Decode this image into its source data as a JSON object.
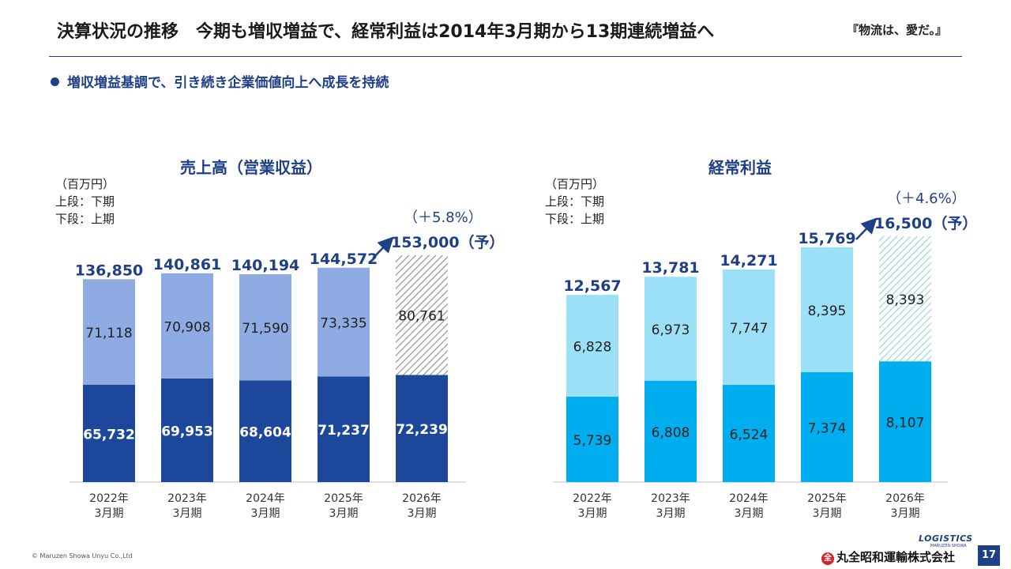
{
  "header": {
    "title": "決算状況の推移　今期も増収増益で、経常利益は2014年3月期から13期連続増益へ",
    "slogan": "『物流は、愛だ。』"
  },
  "bullet": "増収増益基調で、引き続き企業価値向上へ成長を持続",
  "unit_lines": [
    "（百万円）",
    "上段：下期",
    "下段：上期"
  ],
  "colors": {
    "brand": "#1f3f86",
    "sales_lower": "#1c479b",
    "sales_upper": "#8fabe3",
    "profit_lower": "#00aeef",
    "profit_upper": "#9be0f7",
    "label_dark": "#1f3f86"
  },
  "chart_data": [
    {
      "type": "bar",
      "stacked": true,
      "title": "売上高（営業収益）",
      "unit": "百万円",
      "categories": [
        "2022年\n3月期",
        "2023年\n3月期",
        "2024年\n3月期",
        "2025年\n3月期",
        "2026年\n3月期"
      ],
      "series": [
        {
          "name": "下段：上期",
          "values": [
            65732,
            69953,
            68604,
            71237,
            72239
          ]
        },
        {
          "name": "上段：下期",
          "values": [
            71118,
            70908,
            71590,
            73335,
            80761
          ]
        }
      ],
      "total_labels": [
        "136,850",
        "140,861",
        "140,194",
        "144,572",
        "153,000（予）"
      ],
      "lower_labels": [
        "65,732",
        "69,953",
        "68,604",
        "71,237",
        "72,239"
      ],
      "upper_labels": [
        "71,118",
        "70,908",
        "71,590",
        "73,335",
        "80,761"
      ],
      "forecast_index": 4,
      "growth_label": "（＋5.8%）",
      "ylim": [
        0,
        153000
      ]
    },
    {
      "type": "bar",
      "stacked": true,
      "title": "経常利益",
      "unit": "百万円",
      "categories": [
        "2022年\n3月期",
        "2023年\n3月期",
        "2024年\n3月期",
        "2025年\n3月期",
        "2026年\n3月期"
      ],
      "series": [
        {
          "name": "下段：上期",
          "values": [
            5739,
            6808,
            6524,
            7374,
            8107
          ]
        },
        {
          "name": "上段：下期",
          "values": [
            6828,
            6973,
            7747,
            8395,
            8393
          ]
        }
      ],
      "total_labels": [
        "12,567",
        "13,781",
        "14,271",
        "15,769",
        "16,500（予）"
      ],
      "lower_labels": [
        "5,739",
        "6,808",
        "6,524",
        "7,374",
        "8,107"
      ],
      "upper_labels": [
        "6,828",
        "6,973",
        "7,747",
        "8,395",
        "8,393"
      ],
      "forecast_index": 4,
      "growth_label": "（＋4.6%）",
      "ylim": [
        0,
        16500
      ]
    }
  ],
  "footer": {
    "copyright": "© Maruzen Showa Unyu Co.,Ltd",
    "logo_text": "LOGISTICS",
    "logo_sub": "MARUZEN SHOWA",
    "company": "丸全昭和運輸株式会社",
    "company_mark": "全",
    "page": "17"
  }
}
